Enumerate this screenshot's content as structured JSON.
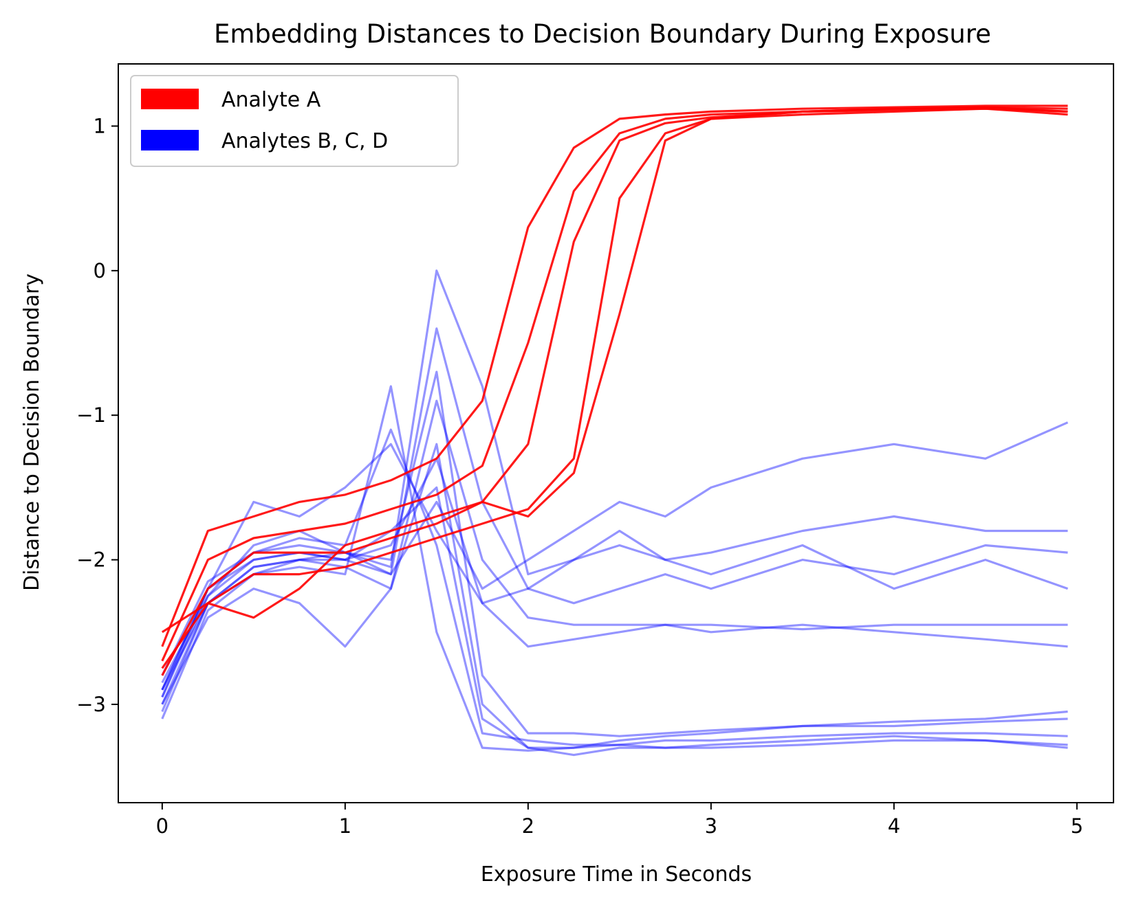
{
  "chart_data": {
    "type": "line",
    "title": "Embedding Distances to Decision Boundary During Exposure",
    "xlabel": "Exposure Time in Seconds",
    "ylabel": "Distance to Decision Boundary",
    "xlim": [
      -0.24,
      5.2
    ],
    "ylim": [
      -3.68,
      1.43
    ],
    "xticks": [
      0,
      1,
      2,
      3,
      4,
      5
    ],
    "xtick_labels": [
      "0",
      "1",
      "2",
      "3",
      "4",
      "5"
    ],
    "yticks": [
      -3,
      -2,
      -1,
      0,
      1
    ],
    "ytick_labels": [
      "−3",
      "−2",
      "−1",
      "0",
      "1"
    ],
    "legend": {
      "placement": "top-left",
      "entries": [
        {
          "label": "Analyte A",
          "color": "#ff0000"
        },
        {
          "label": "Analytes B, C, D",
          "color": "#0000ff"
        }
      ]
    },
    "x": [
      0,
      0.25,
      0.5,
      0.75,
      1.0,
      1.25,
      1.5,
      1.75,
      2.0,
      2.25,
      2.5,
      2.75,
      3.0,
      3.5,
      4.0,
      4.5,
      4.95
    ],
    "series": [
      {
        "name": "Analyte A",
        "color": "#ff0000",
        "values": [
          -2.6,
          -1.8,
          -1.7,
          -1.6,
          -1.55,
          -1.45,
          -1.3,
          -0.9,
          0.3,
          0.85,
          1.05,
          1.08,
          1.1,
          1.12,
          1.13,
          1.14,
          1.14
        ]
      },
      {
        "name": "Analyte A",
        "color": "#ff0000",
        "values": [
          -2.7,
          -2.0,
          -1.85,
          -1.8,
          -1.75,
          -1.65,
          -1.55,
          -1.35,
          -0.5,
          0.55,
          0.95,
          1.05,
          1.08,
          1.1,
          1.12,
          1.13,
          1.12
        ]
      },
      {
        "name": "Analyte A",
        "color": "#ff0000",
        "values": [
          -2.8,
          -2.2,
          -1.95,
          -1.95,
          -1.95,
          -1.85,
          -1.75,
          -1.6,
          -1.2,
          0.2,
          0.9,
          1.02,
          1.06,
          1.1,
          1.11,
          1.12,
          1.1
        ]
      },
      {
        "name": "Analyte A",
        "color": "#ff0000",
        "values": [
          -2.75,
          -2.3,
          -2.1,
          -2.1,
          -2.05,
          -1.95,
          -1.85,
          -1.75,
          -1.65,
          -1.3,
          0.5,
          0.95,
          1.05,
          1.08,
          1.1,
          1.12,
          1.08
        ]
      },
      {
        "name": "Analyte A",
        "color": "#ff0000",
        "values": [
          -2.5,
          -2.3,
          -2.4,
          -2.2,
          -1.9,
          -1.8,
          -1.7,
          -1.6,
          -1.7,
          -1.4,
          -0.3,
          0.9,
          1.05,
          1.1,
          1.12,
          1.13,
          1.1
        ]
      },
      {
        "name": "Analytes B, C, D",
        "color": "#0000ff",
        "values": [
          -2.9,
          -2.2,
          -2.0,
          -1.95,
          -2.0,
          -2.1,
          -0.4,
          -1.6,
          -2.2,
          -2.3,
          -2.2,
          -2.1,
          -2.2,
          -2.0,
          -2.1,
          -1.9,
          -1.95
        ]
      },
      {
        "name": "Analytes B, C, D",
        "color": "#0000ff",
        "values": [
          -3.0,
          -2.3,
          -2.05,
          -2.0,
          -2.05,
          -2.2,
          -0.9,
          -2.0,
          -2.4,
          -2.45,
          -2.45,
          -2.45,
          -2.45,
          -2.48,
          -2.45,
          -2.45,
          -2.45
        ]
      },
      {
        "name": "Analytes B, C, D",
        "color": "#0000ff",
        "values": [
          -2.95,
          -2.2,
          -1.95,
          -1.85,
          -1.9,
          -1.1,
          -1.9,
          -3.2,
          -3.25,
          -3.28,
          -3.28,
          -3.25,
          -3.25,
          -3.22,
          -3.2,
          -3.2,
          -3.22
        ]
      },
      {
        "name": "Analytes B, C, D",
        "color": "#0000ff",
        "values": [
          -3.1,
          -2.35,
          -2.1,
          -2.05,
          -2.1,
          -0.8,
          -2.5,
          -3.3,
          -3.32,
          -3.3,
          -3.28,
          -3.3,
          -3.28,
          -3.25,
          -3.22,
          -3.25,
          -3.28
        ]
      },
      {
        "name": "Analytes B, C, D",
        "color": "#0000ff",
        "values": [
          -2.85,
          -2.25,
          -1.9,
          -1.8,
          -1.95,
          -2.0,
          -0.7,
          -2.8,
          -3.2,
          -3.2,
          -3.22,
          -3.2,
          -3.18,
          -3.15,
          -3.12,
          -3.1,
          -3.05
        ]
      },
      {
        "name": "Analytes B, C, D",
        "color": "#0000ff",
        "values": [
          -2.9,
          -2.3,
          -2.1,
          -2.0,
          -1.95,
          -2.1,
          -1.6,
          -2.2,
          -2.0,
          -1.8,
          -1.6,
          -1.7,
          -1.5,
          -1.3,
          -1.2,
          -1.3,
          -1.05
        ]
      },
      {
        "name": "Analytes B, C, D",
        "color": "#0000ff",
        "values": [
          -3.0,
          -2.4,
          -2.2,
          -2.3,
          -2.6,
          -2.2,
          -1.2,
          -3.0,
          -3.3,
          -3.35,
          -3.3,
          -3.3,
          -3.3,
          -3.28,
          -3.25,
          -3.25,
          -3.3
        ]
      },
      {
        "name": "Analytes B, C, D",
        "color": "#0000ff",
        "values": [
          -2.95,
          -2.25,
          -2.0,
          -1.95,
          -2.0,
          -1.9,
          -1.3,
          -2.3,
          -2.6,
          -2.55,
          -2.5,
          -2.45,
          -2.5,
          -2.45,
          -2.5,
          -2.55,
          -2.6
        ]
      },
      {
        "name": "Analytes B, C, D",
        "color": "#0000ff",
        "values": [
          -2.8,
          -2.15,
          -1.95,
          -1.9,
          -1.95,
          -2.05,
          0.0,
          -0.8,
          -2.1,
          -2.0,
          -1.9,
          -2.0,
          -1.95,
          -1.8,
          -1.7,
          -1.8,
          -1.8
        ]
      },
      {
        "name": "Analytes B, C, D",
        "color": "#0000ff",
        "values": [
          -3.05,
          -2.3,
          -2.05,
          -2.0,
          -2.0,
          -1.8,
          -1.5,
          -3.1,
          -3.3,
          -3.3,
          -3.25,
          -3.22,
          -3.2,
          -3.15,
          -3.15,
          -3.12,
          -3.1
        ]
      },
      {
        "name": "Analytes B, C, D",
        "color": "#0000ff",
        "values": [
          -2.9,
          -2.2,
          -1.6,
          -1.7,
          -1.5,
          -1.2,
          -1.8,
          -2.3,
          -2.2,
          -2.0,
          -1.8,
          -2.0,
          -2.1,
          -1.9,
          -2.2,
          -2.0,
          -2.2
        ]
      }
    ]
  }
}
